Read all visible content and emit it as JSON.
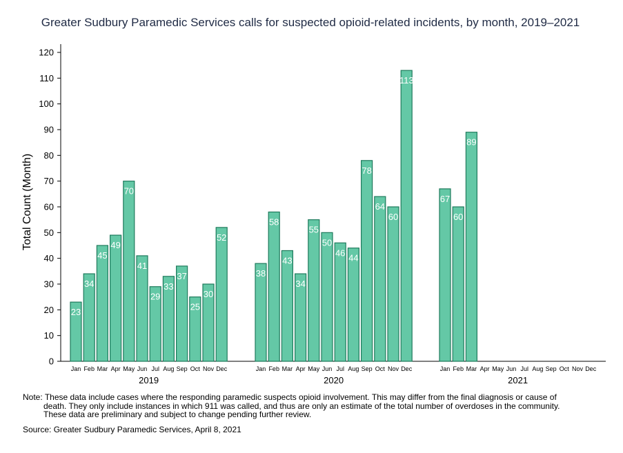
{
  "chart_data": {
    "type": "bar",
    "title": "Greater Sudbury Paramedic Services calls for suspected opioid-related incidents, by month, 2019–2021",
    "ylabel": "Total Count (Month)",
    "ylim": [
      0,
      120
    ],
    "yticks": [
      0,
      10,
      20,
      30,
      40,
      50,
      60,
      70,
      80,
      90,
      100,
      110,
      120
    ],
    "grid": false,
    "months": [
      "Jan",
      "Feb",
      "Mar",
      "Apr",
      "May",
      "Jun",
      "Jul",
      "Aug",
      "Sep",
      "Oct",
      "Nov",
      "Dec"
    ],
    "groups": [
      {
        "year": "2019",
        "values": [
          23,
          34,
          45,
          49,
          70,
          41,
          29,
          33,
          37,
          25,
          30,
          52
        ]
      },
      {
        "year": "2020",
        "values": [
          38,
          58,
          43,
          34,
          55,
          50,
          46,
          44,
          78,
          64,
          60,
          113
        ]
      },
      {
        "year": "2021",
        "values": [
          67,
          60,
          89,
          null,
          null,
          null,
          null,
          null,
          null,
          null,
          null,
          null
        ]
      }
    ],
    "bar_color": "#64c8a6",
    "bar_edge_color": "#1e7a5c"
  },
  "note": {
    "label": "Note:",
    "line1": "These data include cases where the responding paramedic suspects opioid involvement. This may differ from the final diagnosis or cause of",
    "line2": "death. They only include instances in which 911 was called, and thus are only an estimate of the total number of overdoses in the community.",
    "line3": "These data are preliminary and subject to change pending further review."
  },
  "source": "Source: Greater Sudbury Paramedic Services, April 8, 2021"
}
